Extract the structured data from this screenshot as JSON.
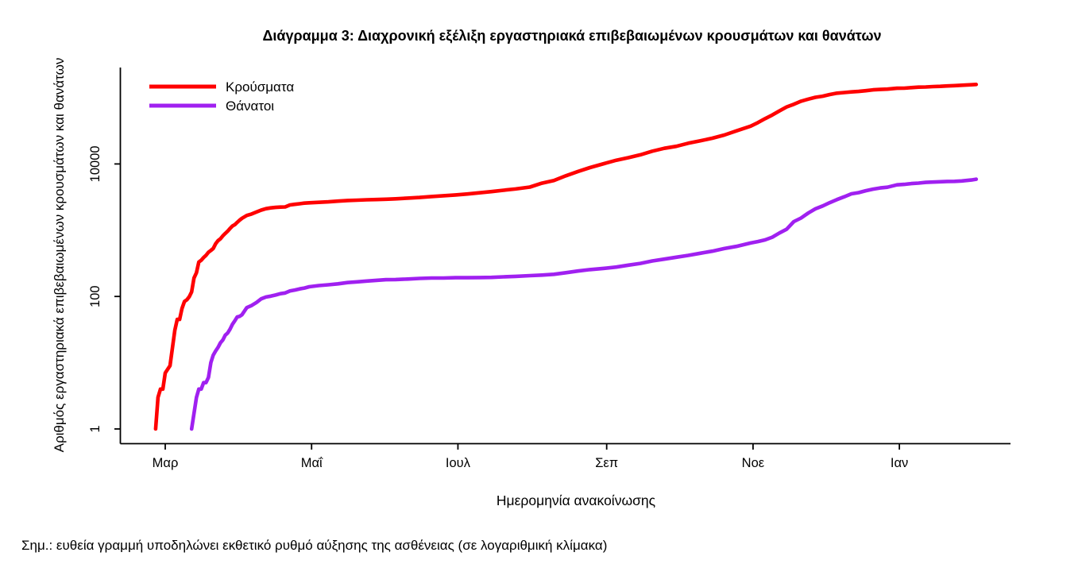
{
  "note": "Σημ.: ευθεία γραμμή υποδηλώνει εκθετικό ρυθμό αύξησης της ασθένειας (σε λογαριθμική κλίμακα)",
  "chart_data": {
    "type": "line",
    "title": "Διάγραμμα 3: Διαχρονική εξέλιξη εργαστηριακά επιβεβαιωμένων κρουσμάτων και θανάτων",
    "xlabel": "Ημερομηνία ανακοίνωσης",
    "ylabel": "Αριθμός εργαστηριακά επιβεβαιωμένων κρουσμάτων και θανάτων",
    "y_scale": "log10",
    "grid": false,
    "legend_position": "top-left-inside",
    "axis_color": "#000000",
    "y_ticks": [
      1,
      100,
      10000
    ],
    "y_range": [
      1,
      300000
    ],
    "x_ticks": [
      {
        "label": "Μαρ",
        "date": "2020-03-01"
      },
      {
        "label": "Μαΐ",
        "date": "2020-05-01"
      },
      {
        "label": "Ιουλ",
        "date": "2020-07-01"
      },
      {
        "label": "Σεπ",
        "date": "2020-09-01"
      },
      {
        "label": "Νοε",
        "date": "2020-11-01"
      },
      {
        "label": "Ιαν",
        "date": "2021-01-01"
      }
    ],
    "x_range": [
      "2020-02-24",
      "2021-02-10"
    ],
    "series": [
      {
        "name": "Κρούσματα",
        "color": "#FF0000",
        "points": [
          [
            "2020-02-26",
            1
          ],
          [
            "2020-02-27",
            3
          ],
          [
            "2020-02-28",
            4
          ],
          [
            "2020-02-29",
            4
          ],
          [
            "2020-03-01",
            7
          ],
          [
            "2020-03-03",
            9
          ],
          [
            "2020-03-05",
            31
          ],
          [
            "2020-03-06",
            45
          ],
          [
            "2020-03-07",
            45
          ],
          [
            "2020-03-08",
            66
          ],
          [
            "2020-03-09",
            84
          ],
          [
            "2020-03-10",
            89
          ],
          [
            "2020-03-11",
            99
          ],
          [
            "2020-03-12",
            117
          ],
          [
            "2020-03-13",
            190
          ],
          [
            "2020-03-14",
            228
          ],
          [
            "2020-03-15",
            331
          ],
          [
            "2020-03-16",
            352
          ],
          [
            "2020-03-17",
            387
          ],
          [
            "2020-03-18",
            418
          ],
          [
            "2020-03-19",
            464
          ],
          [
            "2020-03-20",
            495
          ],
          [
            "2020-03-21",
            530
          ],
          [
            "2020-03-22",
            624
          ],
          [
            "2020-03-23",
            695
          ],
          [
            "2020-03-24",
            743
          ],
          [
            "2020-03-25",
            821
          ],
          [
            "2020-03-26",
            892
          ],
          [
            "2020-03-27",
            966
          ],
          [
            "2020-03-28",
            1061
          ],
          [
            "2020-03-29",
            1156
          ],
          [
            "2020-03-30",
            1212
          ],
          [
            "2020-03-31",
            1314
          ],
          [
            "2020-04-01",
            1415
          ],
          [
            "2020-04-02",
            1514
          ],
          [
            "2020-04-04",
            1673
          ],
          [
            "2020-04-06",
            1755
          ],
          [
            "2020-04-08",
            1884
          ],
          [
            "2020-04-10",
            2011
          ],
          [
            "2020-04-12",
            2114
          ],
          [
            "2020-04-14",
            2170
          ],
          [
            "2020-04-16",
            2207
          ],
          [
            "2020-04-18",
            2235
          ],
          [
            "2020-04-20",
            2245
          ],
          [
            "2020-04-22",
            2408
          ],
          [
            "2020-04-24",
            2463
          ],
          [
            "2020-04-26",
            2506
          ],
          [
            "2020-04-28",
            2566
          ],
          [
            "2020-04-30",
            2591
          ],
          [
            "2020-05-04",
            2632
          ],
          [
            "2020-05-08",
            2678
          ],
          [
            "2020-05-12",
            2744
          ],
          [
            "2020-05-16",
            2810
          ],
          [
            "2020-05-20",
            2840
          ],
          [
            "2020-05-24",
            2882
          ],
          [
            "2020-05-28",
            2906
          ],
          [
            "2020-06-01",
            2937
          ],
          [
            "2020-06-05",
            2980
          ],
          [
            "2020-06-10",
            3049
          ],
          [
            "2020-06-15",
            3121
          ],
          [
            "2020-06-20",
            3227
          ],
          [
            "2020-06-25",
            3310
          ],
          [
            "2020-06-30",
            3409
          ],
          [
            "2020-07-05",
            3519
          ],
          [
            "2020-07-10",
            3672
          ],
          [
            "2020-07-15",
            3826
          ],
          [
            "2020-07-20",
            4007
          ],
          [
            "2020-07-25",
            4193
          ],
          [
            "2020-07-31",
            4477
          ],
          [
            "2020-08-05",
            5123
          ],
          [
            "2020-08-10",
            5623
          ],
          [
            "2020-08-15",
            6632
          ],
          [
            "2020-08-20",
            7684
          ],
          [
            "2020-08-25",
            8819
          ],
          [
            "2020-08-31",
            10134
          ],
          [
            "2020-09-05",
            11386
          ],
          [
            "2020-09-10",
            12452
          ],
          [
            "2020-09-15",
            13730
          ],
          [
            "2020-09-20",
            15595
          ],
          [
            "2020-09-25",
            17228
          ],
          [
            "2020-09-30",
            18475
          ],
          [
            "2020-10-05",
            20541
          ],
          [
            "2020-10-10",
            22358
          ],
          [
            "2020-10-15",
            24450
          ],
          [
            "2020-10-20",
            27334
          ],
          [
            "2020-10-25",
            31496
          ],
          [
            "2020-10-31",
            37196
          ],
          [
            "2020-11-03",
            42080
          ],
          [
            "2020-11-06",
            48246
          ],
          [
            "2020-11-09",
            54809
          ],
          [
            "2020-11-12",
            63321
          ],
          [
            "2020-11-15",
            72510
          ],
          [
            "2020-11-18",
            79495
          ],
          [
            "2020-11-21",
            88664
          ],
          [
            "2020-11-24",
            95134
          ],
          [
            "2020-11-27",
            101287
          ],
          [
            "2020-11-30",
            105271
          ],
          [
            "2020-12-03",
            111537
          ],
          [
            "2020-12-06",
            117091
          ],
          [
            "2020-12-09",
            119720
          ],
          [
            "2020-12-12",
            122406
          ],
          [
            "2020-12-15",
            124534
          ],
          [
            "2020-12-18",
            127557
          ],
          [
            "2020-12-21",
            131468
          ],
          [
            "2020-12-24",
            133324
          ],
          [
            "2020-12-27",
            134894
          ],
          [
            "2020-12-31",
            138850
          ],
          [
            "2021-01-03",
            139447
          ],
          [
            "2021-01-06",
            142079
          ],
          [
            "2021-01-09",
            144374
          ],
          [
            "2021-01-12",
            145179
          ],
          [
            "2021-01-15",
            147283
          ],
          [
            "2021-01-18",
            148370
          ],
          [
            "2021-01-21",
            150479
          ],
          [
            "2021-01-24",
            151980
          ],
          [
            "2021-01-27",
            154083
          ],
          [
            "2021-01-31",
            156957
          ],
          [
            "2021-02-02",
            158441
          ]
        ]
      },
      {
        "name": "Θάνατοι",
        "color": "#A020F0",
        "points": [
          [
            "2020-03-12",
            1
          ],
          [
            "2020-03-14",
            3
          ],
          [
            "2020-03-15",
            4
          ],
          [
            "2020-03-16",
            4
          ],
          [
            "2020-03-17",
            5
          ],
          [
            "2020-03-18",
            5
          ],
          [
            "2020-03-19",
            6
          ],
          [
            "2020-03-20",
            10
          ],
          [
            "2020-03-21",
            13
          ],
          [
            "2020-03-22",
            15
          ],
          [
            "2020-03-23",
            17
          ],
          [
            "2020-03-24",
            20
          ],
          [
            "2020-03-25",
            22
          ],
          [
            "2020-03-26",
            26
          ],
          [
            "2020-03-27",
            28
          ],
          [
            "2020-03-28",
            32
          ],
          [
            "2020-03-29",
            38
          ],
          [
            "2020-03-30",
            43
          ],
          [
            "2020-03-31",
            49
          ],
          [
            "2020-04-01",
            50
          ],
          [
            "2020-04-02",
            53
          ],
          [
            "2020-04-04",
            68
          ],
          [
            "2020-04-06",
            73
          ],
          [
            "2020-04-08",
            81
          ],
          [
            "2020-04-10",
            92
          ],
          [
            "2020-04-12",
            98
          ],
          [
            "2020-04-14",
            101
          ],
          [
            "2020-04-16",
            105
          ],
          [
            "2020-04-18",
            110
          ],
          [
            "2020-04-20",
            113
          ],
          [
            "2020-04-22",
            121
          ],
          [
            "2020-04-24",
            125
          ],
          [
            "2020-04-26",
            130
          ],
          [
            "2020-04-28",
            134
          ],
          [
            "2020-04-30",
            140
          ],
          [
            "2020-05-04",
            146
          ],
          [
            "2020-05-08",
            150
          ],
          [
            "2020-05-12",
            155
          ],
          [
            "2020-05-16",
            162
          ],
          [
            "2020-05-20",
            166
          ],
          [
            "2020-05-24",
            171
          ],
          [
            "2020-05-28",
            175
          ],
          [
            "2020-06-01",
            179
          ],
          [
            "2020-06-05",
            180
          ],
          [
            "2020-06-10",
            183
          ],
          [
            "2020-06-15",
            187
          ],
          [
            "2020-06-20",
            190
          ],
          [
            "2020-06-25",
            190
          ],
          [
            "2020-06-30",
            192
          ],
          [
            "2020-07-05",
            192
          ],
          [
            "2020-07-10",
            193
          ],
          [
            "2020-07-15",
            194
          ],
          [
            "2020-07-20",
            198
          ],
          [
            "2020-07-25",
            201
          ],
          [
            "2020-07-31",
            206
          ],
          [
            "2020-08-05",
            210
          ],
          [
            "2020-08-10",
            216
          ],
          [
            "2020-08-15",
            228
          ],
          [
            "2020-08-20",
            242
          ],
          [
            "2020-08-25",
            254
          ],
          [
            "2020-08-31",
            266
          ],
          [
            "2020-09-05",
            278
          ],
          [
            "2020-09-10",
            297
          ],
          [
            "2020-09-15",
            315
          ],
          [
            "2020-09-20",
            344
          ],
          [
            "2020-09-25",
            366
          ],
          [
            "2020-09-30",
            391
          ],
          [
            "2020-10-05",
            417
          ],
          [
            "2020-10-10",
            449
          ],
          [
            "2020-10-15",
            482
          ],
          [
            "2020-10-20",
            528
          ],
          [
            "2020-10-25",
            570
          ],
          [
            "2020-10-31",
            642
          ],
          [
            "2020-11-03",
            673
          ],
          [
            "2020-11-06",
            715
          ],
          [
            "2020-11-09",
            784
          ],
          [
            "2020-11-12",
            909
          ],
          [
            "2020-11-15",
            1035
          ],
          [
            "2020-11-18",
            1347
          ],
          [
            "2020-11-21",
            1527
          ],
          [
            "2020-11-24",
            1815
          ],
          [
            "2020-11-27",
            2102
          ],
          [
            "2020-11-30",
            2321
          ],
          [
            "2020-12-03",
            2606
          ],
          [
            "2020-12-06",
            2902
          ],
          [
            "2020-12-09",
            3194
          ],
          [
            "2020-12-12",
            3540
          ],
          [
            "2020-12-15",
            3687
          ],
          [
            "2020-12-18",
            3948
          ],
          [
            "2020-12-21",
            4172
          ],
          [
            "2020-12-24",
            4340
          ],
          [
            "2020-12-27",
            4457
          ],
          [
            "2020-12-31",
            4838
          ],
          [
            "2021-01-03",
            4921
          ],
          [
            "2021-01-06",
            5051
          ],
          [
            "2021-01-09",
            5146
          ],
          [
            "2021-01-12",
            5263
          ],
          [
            "2021-01-15",
            5329
          ],
          [
            "2021-01-18",
            5387
          ],
          [
            "2021-01-21",
            5441
          ],
          [
            "2021-01-24",
            5469
          ],
          [
            "2021-01-27",
            5546
          ],
          [
            "2021-01-31",
            5724
          ],
          [
            "2021-02-02",
            5878
          ]
        ]
      }
    ]
  }
}
